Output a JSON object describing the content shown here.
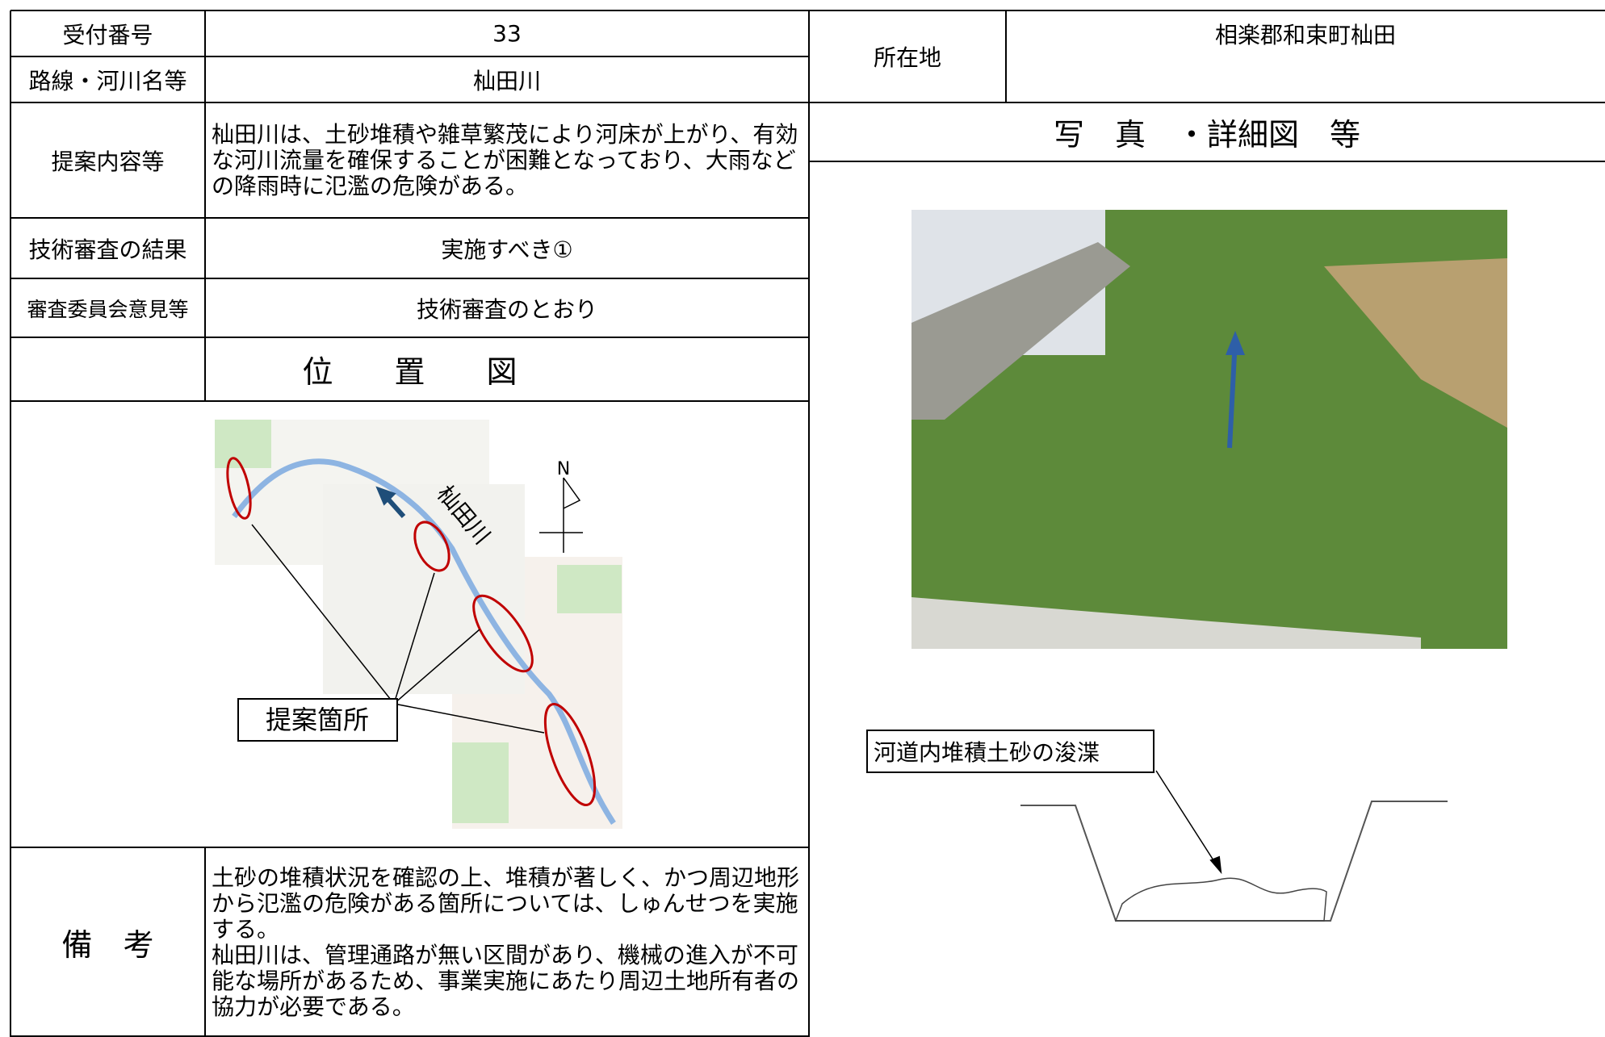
{
  "table": {
    "reception_number": {
      "label": "受付番号",
      "value": "33"
    },
    "route": {
      "label": "路線・河川名等",
      "value": "杣田川"
    },
    "location": {
      "label": "所在地",
      "value": "相楽郡和束町杣田"
    },
    "proposal": {
      "label": "提案内容等",
      "value": "杣田川は、土砂堆積や雑草繁茂により河床が上がり、有効な河川流量を確保することが困難となっており、大雨などの降雨時に氾濫の危険がある。"
    },
    "review_result": {
      "label": "技術審査の結果",
      "value": "実施すべき①"
    },
    "committee": {
      "label": "審査委員会意見等",
      "value": "技術審査のとおり"
    },
    "map_header": "位　　置　　図",
    "photo_header": "写　真　・詳細図　等",
    "remarks": {
      "label": "備　考",
      "value": "土砂の堆積状況を確認の上、堆積が著しく、かつ周辺地形から氾濫の危険がある箇所については、しゅんせつを実施する。\n杣田川は、管理通路が無い区間があり、機械の進入が不可能な場所があるため、事業実施にあたり周辺土地所有者の協力が必要である。"
    }
  },
  "map": {
    "river_label": "杣田川",
    "north": "N",
    "callout": "提案箇所"
  },
  "diagram": {
    "callout": "河道内堆積土砂の浚渫"
  }
}
